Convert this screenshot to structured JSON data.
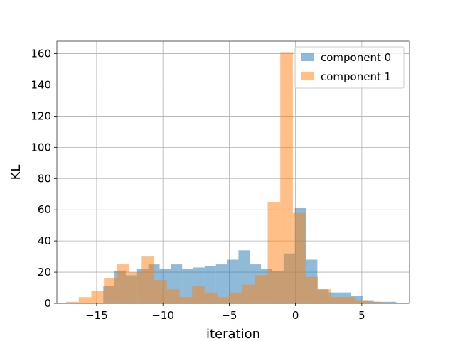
{
  "chart_data": {
    "type": "bar",
    "subtype": "overlaid-histogram",
    "xlabel": "iteration",
    "ylabel": "KL",
    "xlim": [
      -18.0,
      8.6
    ],
    "ylim": [
      0,
      168
    ],
    "xticks": [
      -15,
      -10,
      -5,
      0,
      5
    ],
    "xtick_labels": [
      "−15",
      "−10",
      "−5",
      "0",
      "5"
    ],
    "yticks": [
      0,
      20,
      40,
      60,
      80,
      100,
      120,
      140,
      160
    ],
    "ytick_labels": [
      "0",
      "20",
      "40",
      "60",
      "80",
      "100",
      "120",
      "140",
      "160"
    ],
    "grid": true,
    "legend_position": "top-right",
    "series": [
      {
        "name": "component 0",
        "color": "#1f77b4",
        "opacity": 0.5,
        "bin_start": -14.5,
        "bin_width": 0.85,
        "values": [
          11,
          21,
          18,
          22,
          25,
          22,
          25,
          22,
          23,
          24,
          25,
          28,
          34,
          25,
          22,
          21,
          32,
          61,
          28,
          9,
          7,
          7,
          5,
          2,
          1,
          1
        ]
      },
      {
        "name": "component 1",
        "color": "#ff7f0e",
        "opacity": 0.5,
        "bin_start": -17.3,
        "bin_width": 0.95,
        "values": [
          1,
          4,
          8,
          16,
          25,
          20,
          30,
          15,
          9,
          4,
          11,
          7,
          4,
          7,
          12,
          18,
          65,
          161,
          58,
          17,
          9,
          4,
          4,
          2,
          1
        ]
      }
    ]
  }
}
